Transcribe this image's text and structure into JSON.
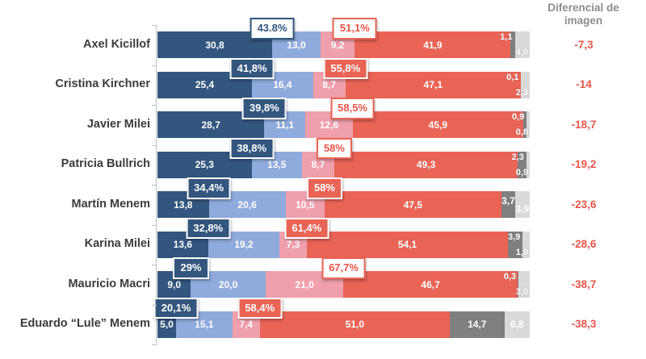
{
  "header": {
    "title": "Diferencial de imagen"
  },
  "colors": {
    "dark_blue": "#32567E",
    "light_blue": "#8FAADC",
    "pink": "#F09FAC",
    "red": "#E96455",
    "dark_gray": "#7F7F7F",
    "light_gray": "#D9D9D9",
    "differential_text": "#E8544A",
    "category_text": "#3B3B3B",
    "header_text": "#8C8C8C",
    "axis": "#BFBFBF"
  },
  "chart_data": {
    "type": "bar",
    "orientation": "horizontal",
    "stacked": true,
    "axis_range": [
      0,
      100
    ],
    "grid": false,
    "legend": "none",
    "title": "Diferencial de imagen",
    "categories": [
      "Axel Kicillof",
      "Cristina Kirchner",
      "Javier Milei",
      "Patricia Bullrich",
      "Martín Menem",
      "Karina Milei",
      "Mauricio Macri",
      "Eduardo “Lule” Menem"
    ],
    "series": [
      {
        "name": "dark-blue",
        "color": "#32567E",
        "values": [
          30.8,
          25.4,
          28.7,
          25.3,
          13.8,
          13.6,
          9.0,
          5.0
        ]
      },
      {
        "name": "light-blue",
        "color": "#8FAADC",
        "values": [
          13.0,
          16.4,
          11.1,
          13.5,
          20.6,
          19.2,
          20.0,
          15.1
        ]
      },
      {
        "name": "pink",
        "color": "#F09FAC",
        "values": [
          9.2,
          8.7,
          12.6,
          8.7,
          10.5,
          7.3,
          21.0,
          7.4
        ]
      },
      {
        "name": "red",
        "color": "#E96455",
        "values": [
          41.9,
          47.1,
          45.9,
          49.3,
          47.5,
          54.1,
          46.7,
          51.0
        ]
      },
      {
        "name": "dark-gray",
        "color": "#7F7F7F",
        "values": [
          1.1,
          0.1,
          0.9,
          2.3,
          3.7,
          3.9,
          0.3,
          14.7
        ]
      },
      {
        "name": "light-gray",
        "color": "#D9D9D9",
        "values": [
          4.0,
          2.3,
          0.8,
          0.9,
          3.9,
          1.9,
          3.0,
          6.8
        ]
      }
    ],
    "rows": [
      {
        "category": "Axel Kicillof",
        "segment_labels": [
          "30,8",
          "13,0",
          "9,2",
          "41,9",
          "1,1",
          "4,0"
        ],
        "positive_badge": {
          "text": "43.8%",
          "style": "outline"
        },
        "negative_badge": {
          "text": "51,1%",
          "style": "outline"
        },
        "differential": "-7,3",
        "tail_mode": "stacked"
      },
      {
        "category": "Cristina Kirchner",
        "segment_labels": [
          "25,4",
          "16,4",
          "8,7",
          "47,1",
          "0,1",
          "2,3"
        ],
        "positive_badge": {
          "text": "41,8%",
          "style": "filled"
        },
        "negative_badge": {
          "text": "55,8%",
          "style": "filled"
        },
        "differential": "-14",
        "tail_mode": "stacked"
      },
      {
        "category": "Javier Milei",
        "segment_labels": [
          "28,7",
          "11,1",
          "12,6",
          "45,9",
          "0,9",
          "0,8"
        ],
        "positive_badge": {
          "text": "39,8%",
          "style": "filled"
        },
        "negative_badge": {
          "text": "58,5%",
          "style": "outline"
        },
        "differential": "-18,7",
        "tail_mode": "stacked"
      },
      {
        "category": "Patricia Bullrich",
        "segment_labels": [
          "25,3",
          "13,5",
          "8,7",
          "49,3",
          "2,3",
          "0,9"
        ],
        "positive_badge": {
          "text": "38,8%",
          "style": "filled"
        },
        "negative_badge": {
          "text": "58%",
          "style": "outline"
        },
        "differential": "-19,2",
        "tail_mode": "stacked"
      },
      {
        "category": "Martín Menem",
        "segment_labels": [
          "13,8",
          "20,6",
          "10,5",
          "47,5",
          "3,7",
          "3,9"
        ],
        "positive_badge": {
          "text": "34,4%",
          "style": "filled"
        },
        "negative_badge": {
          "text": "58%",
          "style": "filled"
        },
        "differential": "-23,6",
        "tail_mode": "staggered"
      },
      {
        "category": "Karina Milei",
        "segment_labels": [
          "13,6",
          "19,2",
          "7,3",
          "54,1",
          "3,9",
          "1,9"
        ],
        "positive_badge": {
          "text": "32,8%",
          "style": "filled"
        },
        "negative_badge": {
          "text": "61,4%",
          "style": "filled"
        },
        "differential": "-28,6",
        "tail_mode": "stacked"
      },
      {
        "category": "Mauricio Macri",
        "segment_labels": [
          "9,0",
          "20,0",
          "21,0",
          "46,7",
          "0,3",
          "3,0"
        ],
        "positive_badge": {
          "text": "29%",
          "style": "filled"
        },
        "negative_badge": {
          "text": "67,7%",
          "style": "outline"
        },
        "differential": "-38,7",
        "tail_mode": "stacked"
      },
      {
        "category": "Eduardo “Lule” Menem",
        "segment_labels": [
          "5,0",
          "15,1",
          "7,4",
          "51,0",
          "14,7",
          "6,8"
        ],
        "positive_badge": {
          "text": "20,1%",
          "style": "filled"
        },
        "negative_badge": {
          "text": "58,4%",
          "style": "filled"
        },
        "differential": "-38,3",
        "tail_mode": "centered"
      }
    ]
  }
}
